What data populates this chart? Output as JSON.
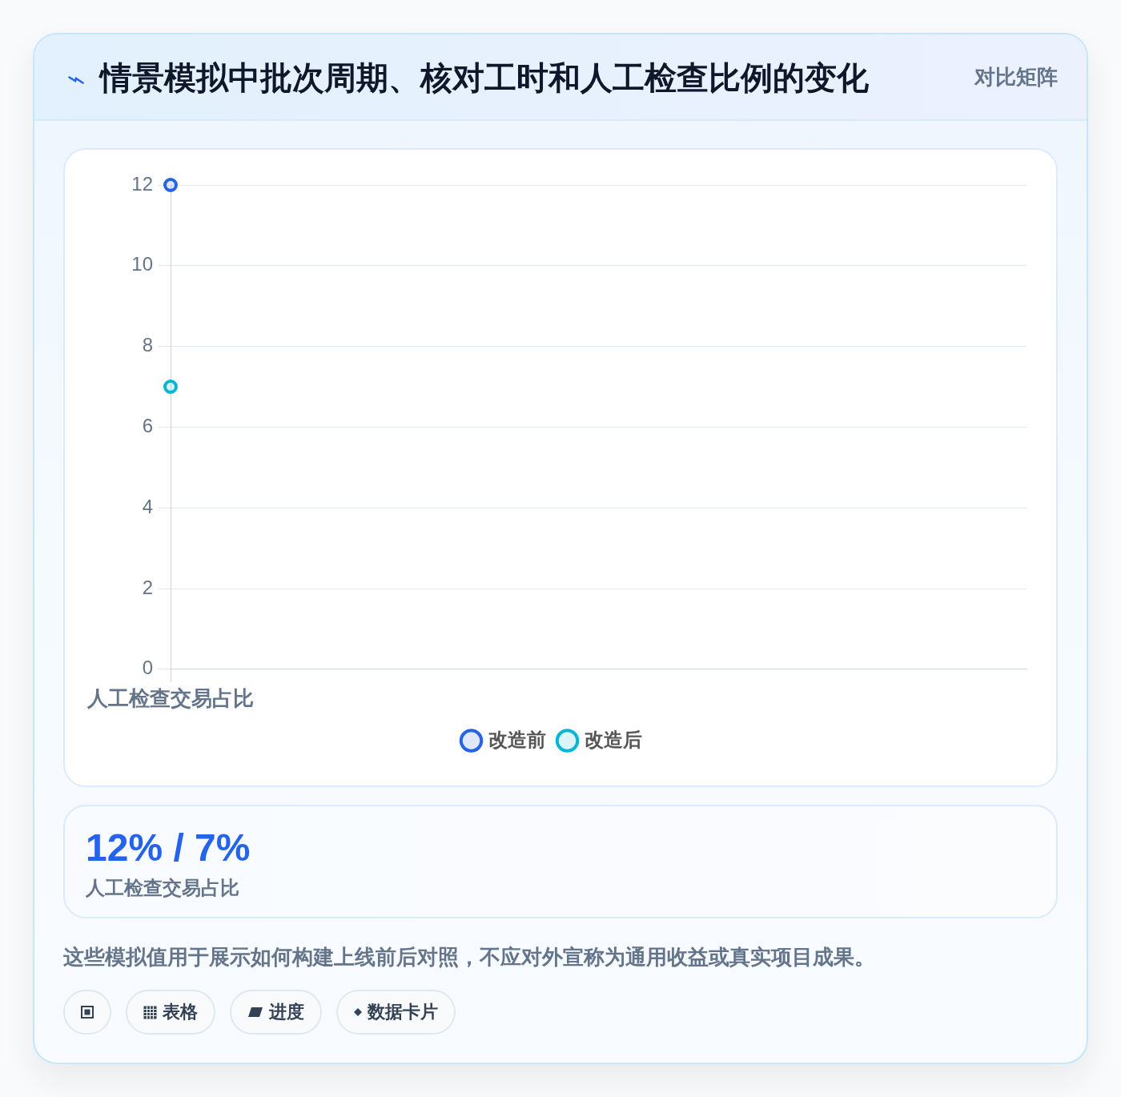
{
  "chart_data": [
    {
      "type": "line",
      "title": "情景模拟中批次周期、核对工时和人工检查比例的变化",
      "annotations": [
        "对比矩阵"
      ],
      "categories": [
        "人工检查交易占比"
      ],
      "series": [
        {
          "name": "改造前",
          "color": "#2563eb",
          "values": [
            12
          ]
        },
        {
          "name": "改造后",
          "color": "#06b6d4",
          "values": [
            7
          ]
        }
      ],
      "ylim": [
        0,
        12
      ],
      "yticks": [
        0,
        2,
        4,
        6,
        8,
        10,
        12
      ],
      "grid": true,
      "legend": "bottom",
      "marker": "circle"
    },
    {
      "type": "other",
      "title": "12% / 7%",
      "subtitle": "人工检查交易占比",
      "annotations": [
        "这些模拟值用于展示如何构建上线前后对照，不应对外宣称为通用收益或真实项目成果。",
        "表格",
        "进度",
        "数据卡片"
      ]
    }
  ]
}
